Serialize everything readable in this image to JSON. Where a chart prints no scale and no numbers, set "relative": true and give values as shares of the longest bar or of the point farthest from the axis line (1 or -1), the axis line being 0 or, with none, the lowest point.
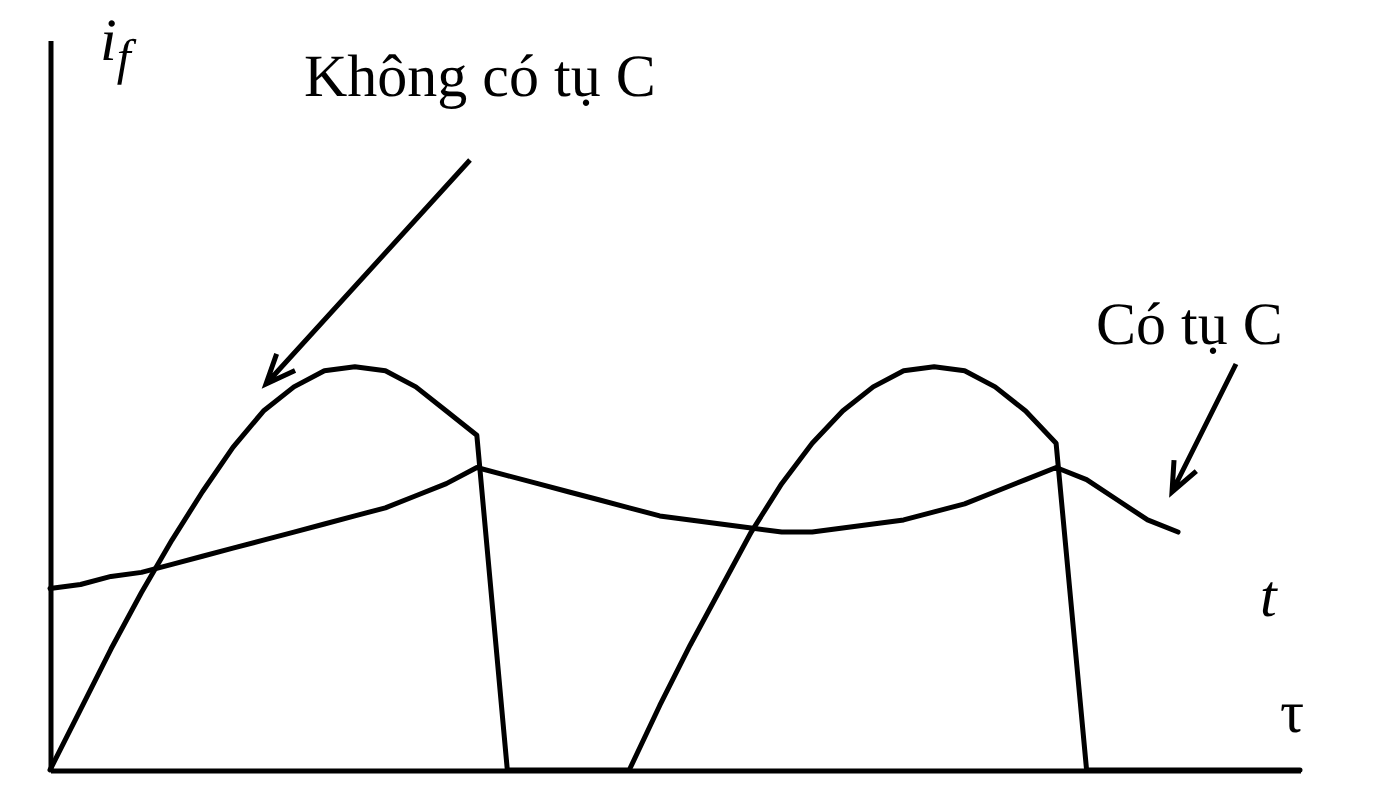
{
  "chart_data": {
    "type": "line",
    "relative": true,
    "ylabel": "i$_{f}$",
    "xlabel": "τ",
    "annotations": [
      "t"
    ],
    "categories": [
      null,
      null,
      null,
      null,
      null,
      null,
      null,
      null,
      null,
      null,
      null,
      null,
      null,
      null,
      null,
      null,
      null,
      null,
      null,
      null,
      null,
      null,
      null,
      null,
      null,
      null,
      null,
      null,
      null,
      null,
      null,
      null,
      null,
      null,
      null,
      null,
      null,
      null,
      null,
      null,
      null,
      null
    ],
    "series": [
      {
        "name": "Không có tụ C",
        "color": "#000000",
        "values": [
          0,
          0.15,
          0.3,
          0.44,
          0.57,
          0.69,
          0.8,
          0.89,
          0.95,
          0.99,
          1,
          0.99,
          0.95,
          0.89,
          0.83,
          0,
          0,
          0,
          0,
          0,
          0.16,
          0.31,
          0.45,
          0.59,
          0.71,
          0.81,
          0.89,
          0.95,
          0.99,
          1,
          0.99,
          0.95,
          0.89,
          0.81,
          0,
          0,
          0,
          0,
          0,
          0,
          0,
          0
        ]
      },
      {
        "name": "Có tụ C",
        "color": "#000000",
        "values": [
          0.45,
          0.46,
          0.48,
          0.49,
          0.51,
          0.53,
          0.55,
          0.57,
          0.59,
          0.61,
          0.63,
          0.65,
          0.68,
          0.71,
          0.75,
          0.73,
          0.71,
          0.69,
          0.67,
          0.65,
          0.63,
          0.62,
          0.61,
          0.6,
          0.59,
          0.59,
          0.6,
          0.61,
          0.62,
          0.64,
          0.66,
          0.69,
          0.72,
          0.75,
          0.72,
          0.67,
          0.62,
          0.59,
          null,
          null,
          null,
          null
        ]
      }
    ],
    "legend": false,
    "marker": "none",
    "line_style": "solid",
    "grid": false
  }
}
